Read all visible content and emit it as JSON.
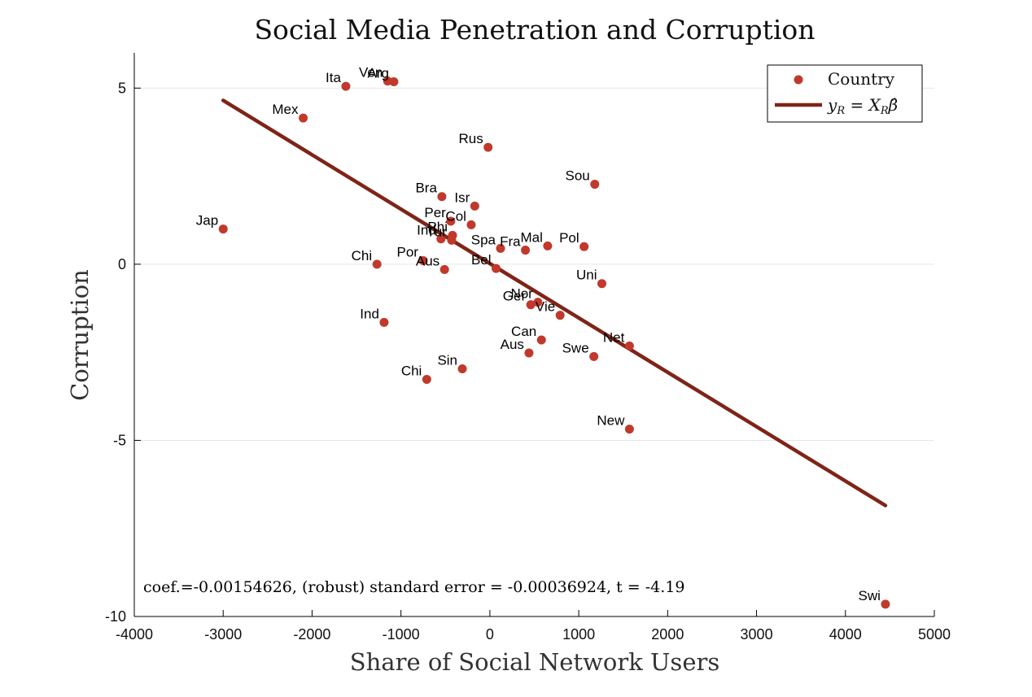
{
  "chart_data": {
    "type": "scatter",
    "title": "Social Media Penetration and Corruption",
    "xlabel": "Share of Social Network Users",
    "ylabel": "Corruption",
    "xlim": [
      -4000,
      5000
    ],
    "ylim": [
      -10,
      6
    ],
    "xticks": [
      -4000,
      -3000,
      -2000,
      -1000,
      0,
      1000,
      2000,
      3000,
      4000,
      5000
    ],
    "xtick_labels": [
      "-4000",
      "-3000",
      "-2000",
      "-1000",
      "0",
      "1000",
      "2000",
      "3000",
      "4000",
      "5000"
    ],
    "yticks": [
      5,
      0,
      -5,
      -10
    ],
    "ytick_labels": [
      "5",
      "0",
      "-5",
      "-10"
    ],
    "grid": "horizontal",
    "legend_position": "top-right",
    "colors": {
      "points": "#c0392b",
      "fit_line": "#7f2418",
      "grid": "#e6e6e6",
      "axes": "#000000"
    },
    "series": [
      {
        "name": "Country",
        "kind": "scatter",
        "points": [
          {
            "label": "Ita",
            "x": -1620,
            "y": 5.05
          },
          {
            "label": "Ven",
            "x": -1150,
            "y": 5.2
          },
          {
            "label": "Arg",
            "x": -1080,
            "y": 5.18
          },
          {
            "label": "Mex",
            "x": -2100,
            "y": 4.15
          },
          {
            "label": "Rus",
            "x": -20,
            "y": 3.32
          },
          {
            "label": "Sou",
            "x": 1180,
            "y": 2.27
          },
          {
            "label": "Bra",
            "x": -540,
            "y": 1.92
          },
          {
            "label": "Isr",
            "x": -170,
            "y": 1.65
          },
          {
            "label": "Per",
            "x": -440,
            "y": 1.22
          },
          {
            "label": "Col",
            "x": -210,
            "y": 1.12
          },
          {
            "label": "Jap",
            "x": -3000,
            "y": 1.0
          },
          {
            "label": "Phi",
            "x": -420,
            "y": 0.82
          },
          {
            "label": "Ind",
            "x": -550,
            "y": 0.72
          },
          {
            "label": "Tur",
            "x": -430,
            "y": 0.68
          },
          {
            "label": "Spa",
            "x": 120,
            "y": 0.45
          },
          {
            "label": "Fra",
            "x": 400,
            "y": 0.4
          },
          {
            "label": "Mal",
            "x": 650,
            "y": 0.52
          },
          {
            "label": "Pol",
            "x": 1060,
            "y": 0.5
          },
          {
            "label": "Chi",
            "x": -1270,
            "y": 0.0
          },
          {
            "label": "Por",
            "x": -750,
            "y": 0.1
          },
          {
            "label": "Aus",
            "x": -510,
            "y": -0.15
          },
          {
            "label": "Bel",
            "x": 70,
            "y": -0.12
          },
          {
            "label": "Uni",
            "x": 1260,
            "y": -0.55
          },
          {
            "label": "Ger",
            "x": 460,
            "y": -1.15
          },
          {
            "label": "Nor",
            "x": 540,
            "y": -1.08
          },
          {
            "label": "Vie",
            "x": 790,
            "y": -1.45
          },
          {
            "label": "Ind",
            "x": -1190,
            "y": -1.65
          },
          {
            "label": "Can",
            "x": 580,
            "y": -2.15
          },
          {
            "label": "Aus",
            "x": 440,
            "y": -2.52
          },
          {
            "label": "Net",
            "x": 1570,
            "y": -2.32
          },
          {
            "label": "Swe",
            "x": 1170,
            "y": -2.62
          },
          {
            "label": "Sin",
            "x": -310,
            "y": -2.97
          },
          {
            "label": "Chi",
            "x": -710,
            "y": -3.27
          },
          {
            "label": "New",
            "x": 1570,
            "y": -4.68
          },
          {
            "label": "Swi",
            "x": 4450,
            "y": -9.65
          }
        ]
      },
      {
        "name": "y_R = X_R β̂",
        "kind": "line",
        "points": [
          {
            "x": -3000,
            "y": 4.65
          },
          {
            "x": 4450,
            "y": -6.85
          }
        ]
      }
    ],
    "legend": [
      {
        "label": "Country",
        "kind": "marker"
      },
      {
        "label": "y_R = X_R β̂",
        "kind": "line"
      }
    ],
    "annotation": "coef.=-0.00154626, (robust) standard error = -0.00036924, t = -4.19"
  }
}
